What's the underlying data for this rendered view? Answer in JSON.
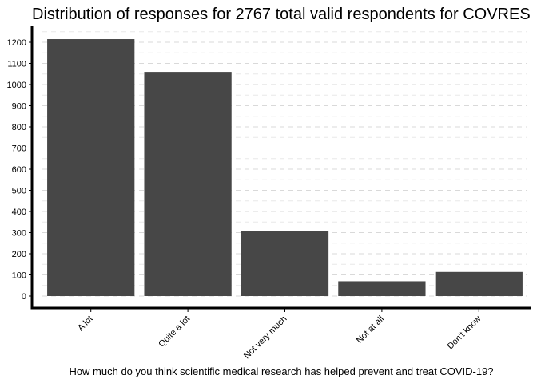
{
  "chart_data": {
    "type": "bar",
    "title": "Distribution of responses for 2767 total valid respondents for COVRES",
    "xlabel": "How much do you think scientific medical research has helped prevent and treat COVID-19?",
    "ylabel": "",
    "categories": [
      "A lot",
      "Quite a lot",
      "Not very much",
      "Not at all",
      "Don't know"
    ],
    "values": [
      1215,
      1060,
      308,
      70,
      114
    ],
    "ylim": [
      0,
      1250
    ],
    "yticks": [
      0,
      100,
      200,
      300,
      400,
      500,
      600,
      700,
      800,
      900,
      1000,
      1100,
      1200
    ],
    "grid": true,
    "legend": "none",
    "bar_color": "#474747",
    "grid_color": "#d9d9d9"
  }
}
